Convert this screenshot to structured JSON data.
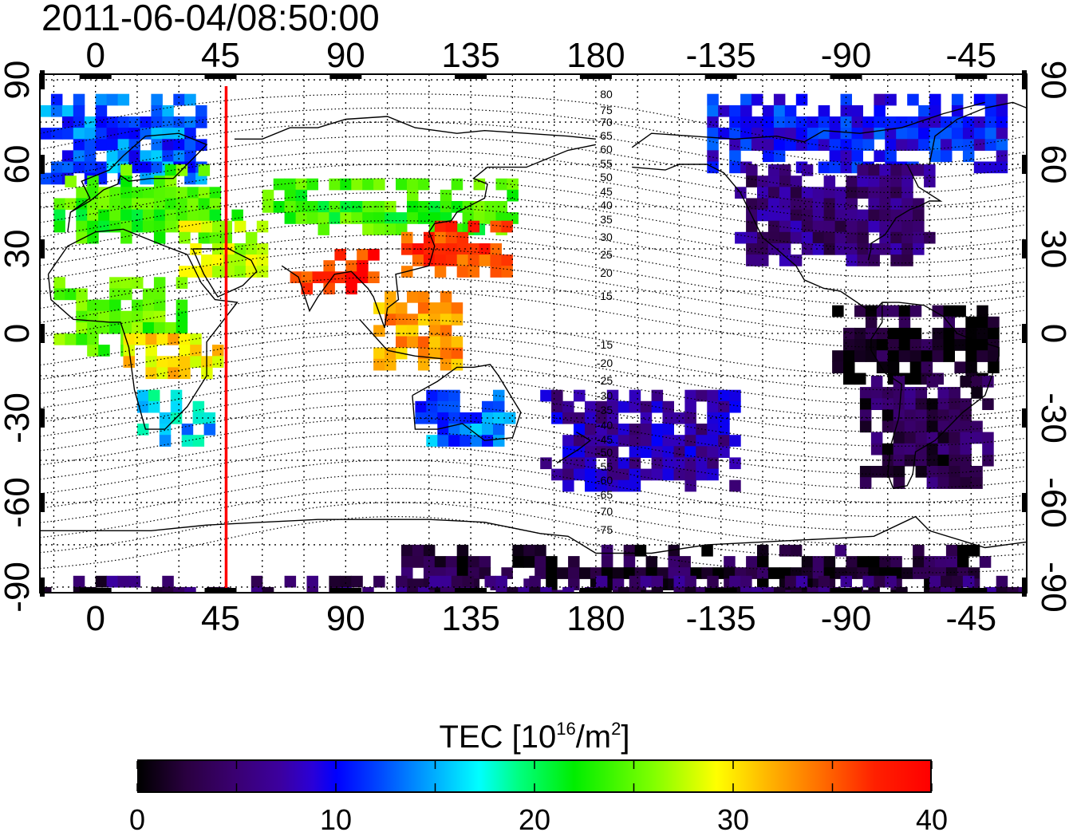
{
  "title": "2011-06-04/08:50:00",
  "map": {
    "lon_ticks_labels": [
      "0",
      "45",
      "90",
      "135",
      "180",
      "-135",
      "-90",
      "-45"
    ],
    "lon_ticks_deg": [
      0,
      45,
      90,
      135,
      180,
      225,
      270,
      315
    ],
    "lat_ticks_labels": [
      "90",
      "60",
      "30",
      "0",
      "-30",
      "-60",
      "-90"
    ],
    "lat_ticks_deg": [
      90,
      60,
      30,
      0,
      -30,
      -60,
      -90
    ],
    "lon_range": [
      -20,
      335
    ],
    "lat_range": [
      -92,
      92
    ],
    "marker_line": {
      "lon": 47,
      "color": "#ff0000"
    },
    "contour_labels_upper": [
      "80",
      "75",
      "70",
      "65",
      "60",
      "55",
      "50",
      "45",
      "40",
      "35",
      "30",
      "25",
      "20",
      "15"
    ],
    "contour_labels_lower": [
      "15",
      "20",
      "25",
      "30",
      "35",
      "40",
      "45",
      "50",
      "55",
      "60",
      "65",
      "70",
      "75"
    ],
    "grid": "dotted"
  },
  "colorbar": {
    "label_text": "TEC  [10",
    "label_sup1": "16",
    "label_mid": "/m",
    "label_sup2": "2",
    "label_end": "]",
    "ticks": [
      "0",
      "10",
      "20",
      "30",
      "40"
    ],
    "range": [
      0,
      40
    ]
  },
  "chart_data": {
    "type": "heatmap",
    "title": "2011-06-04/08:50:00",
    "quantity": "TEC",
    "value_range": [
      0,
      40
    ],
    "regions": [
      {
        "lon": [
          -20,
          40
        ],
        "lat": [
          55,
          85
        ],
        "tec": 12
      },
      {
        "lon": [
          -15,
          50
        ],
        "lat": [
          35,
          60
        ],
        "tec": 22
      },
      {
        "lon": [
          30,
          60
        ],
        "lat": [
          20,
          40
        ],
        "tec": 27
      },
      {
        "lon": [
          -15,
          30
        ],
        "lat": [
          -5,
          20
        ],
        "tec": 23
      },
      {
        "lon": [
          10,
          45
        ],
        "lat": [
          -15,
          0
        ],
        "tec": 30
      },
      {
        "lon": [
          15,
          40
        ],
        "lat": [
          -40,
          -20
        ],
        "tec": 15
      },
      {
        "lon": [
          60,
          150
        ],
        "lat": [
          35,
          55
        ],
        "tec": 22
      },
      {
        "lon": [
          70,
          100
        ],
        "lat": [
          15,
          30
        ],
        "tec": 38
      },
      {
        "lon": [
          110,
          150
        ],
        "lat": [
          20,
          40
        ],
        "tec": 37
      },
      {
        "lon": [
          100,
          130
        ],
        "lat": [
          -10,
          15
        ],
        "tec": 33
      },
      {
        "lon": [
          115,
          150
        ],
        "lat": [
          -40,
          -20
        ],
        "tec": 12
      },
      {
        "lon": [
          160,
          230
        ],
        "lat": [
          -55,
          -20
        ],
        "tec": 7
      },
      {
        "lon": [
          220,
          325
        ],
        "lat": [
          60,
          85
        ],
        "tec": 10
      },
      {
        "lon": [
          230,
          300
        ],
        "lat": [
          25,
          60
        ],
        "tec": 5
      },
      {
        "lon": [
          265,
          325
        ],
        "lat": [
          -15,
          10
        ],
        "tec": 1
      },
      {
        "lon": [
          275,
          320
        ],
        "lat": [
          -55,
          -15
        ],
        "tec": 3
      },
      {
        "lon": [
          110,
          320
        ],
        "lat": [
          -92,
          -75
        ],
        "tec": 2
      },
      {
        "lon": [
          -20,
          335
        ],
        "lat": [
          -92,
          -86
        ],
        "tec": 4
      }
    ]
  }
}
